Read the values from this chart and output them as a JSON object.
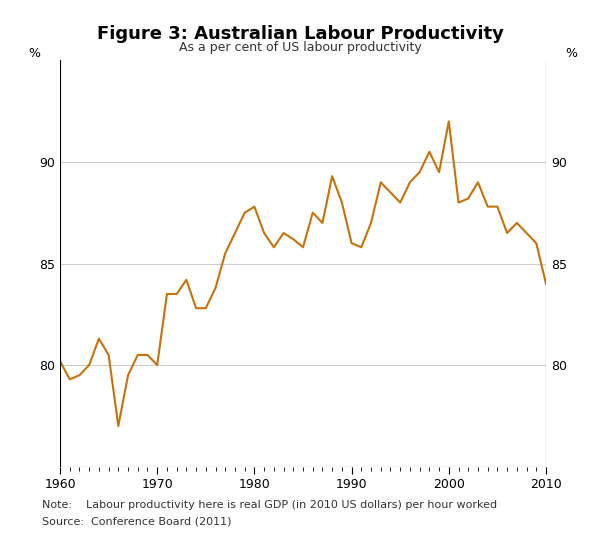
{
  "title": "Figure 3: Australian Labour Productivity",
  "subtitle": "As a per cent of US labour productivity",
  "note": "Note:    Labour productivity here is real GDP (in 2010 US dollars) per hour worked",
  "source": "Source:  Conference Board (2011)",
  "line_color": "#C8720A",
  "background_color": "#ffffff",
  "ylim": [
    75,
    95
  ],
  "xlim": [
    1960,
    2010
  ],
  "yticks_labeled": [
    80,
    85,
    90
  ],
  "yticks_all": [
    75,
    80,
    85,
    90,
    95
  ],
  "xticks": [
    1960,
    1970,
    1980,
    1990,
    2000,
    2010
  ],
  "ylabel_left": "%",
  "ylabel_right": "%",
  "years": [
    1960,
    1961,
    1962,
    1963,
    1964,
    1965,
    1966,
    1967,
    1968,
    1969,
    1970,
    1971,
    1972,
    1973,
    1974,
    1975,
    1976,
    1977,
    1978,
    1979,
    1980,
    1981,
    1982,
    1983,
    1984,
    1985,
    1986,
    1987,
    1988,
    1989,
    1990,
    1991,
    1992,
    1993,
    1994,
    1995,
    1996,
    1997,
    1998,
    1999,
    2000,
    2001,
    2002,
    2003,
    2004,
    2005,
    2006,
    2007,
    2008,
    2009,
    2010
  ],
  "values": [
    80.2,
    79.3,
    79.5,
    80.0,
    81.3,
    80.5,
    77.0,
    79.5,
    80.5,
    80.5,
    80.0,
    83.5,
    83.5,
    84.2,
    82.8,
    82.8,
    83.8,
    85.5,
    86.5,
    87.5,
    87.8,
    86.5,
    85.8,
    86.5,
    86.2,
    85.8,
    87.5,
    87.0,
    89.3,
    88.0,
    86.0,
    85.8,
    87.0,
    89.0,
    88.5,
    88.0,
    89.0,
    89.5,
    90.5,
    89.5,
    92.0,
    88.0,
    88.2,
    89.0,
    87.8,
    87.8,
    86.5,
    87.0,
    86.5,
    86.0,
    84.0
  ],
  "grid_color": "#cccccc",
  "grid_linewidth": 0.8,
  "line_width": 1.5,
  "title_fontsize": 13,
  "subtitle_fontsize": 9,
  "tick_labelsize": 9,
  "note_fontsize": 8
}
